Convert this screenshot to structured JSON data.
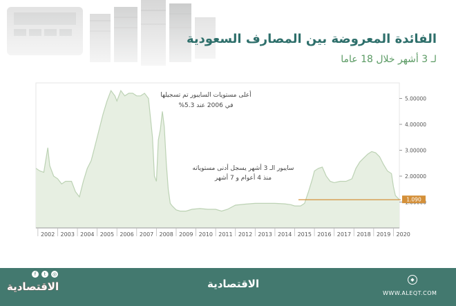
{
  "title": "الفائدة المعروضة بين المصارف السعودية",
  "subtitle": "لـ 3 أشهر خلال 18 عاما",
  "colors": {
    "accent": "#2e6f6b",
    "area_fill": "#e7efe2",
    "line": "#bcd2b4",
    "marker": "#d4903a",
    "footer": "#43796f"
  },
  "annotations": {
    "high_line1": "أعلى مستويات السايبور تم تسجيلها",
    "high_line2": "في 2006 عند 5.3%",
    "low_line1": "سايبور الـ 3 أشهر يسجل أدنى مستوياته",
    "low_line2": "منذ 4 أعوام و 7 أشهر"
  },
  "marker_label": "1.090",
  "footer": {
    "brand": "الاقتصادية",
    "url": "WWW.ALEQT.COM",
    "social_icons": [
      "facebook-icon",
      "twitter-icon",
      "instagram-icon"
    ]
  },
  "chart_data": {
    "type": "area",
    "title": "الفائدة المعروضة بين المصارف السعودية",
    "xlabel": "",
    "ylabel": "",
    "x_ticks": [
      "2002",
      "2003",
      "2004",
      "2005",
      "2006",
      "2007",
      "2008",
      "2009",
      "2010",
      "2011",
      "2012",
      "2013",
      "2014",
      "2015",
      "2016",
      "2017",
      "2018",
      "2019",
      "2020"
    ],
    "y_ticks": [
      "1.00000",
      "2.00000",
      "3.00000",
      "4.00000",
      "5.00000"
    ],
    "xlim": [
      2001.9,
      2020.3
    ],
    "ylim": [
      0,
      5.6
    ],
    "grid": false,
    "highlight_value": 1.09,
    "x": [
      2001.9,
      2002.1,
      2002.3,
      2002.5,
      2002.6,
      2002.8,
      2003.0,
      2003.2,
      2003.4,
      2003.7,
      2003.9,
      2004.1,
      2004.3,
      2004.5,
      2004.7,
      2004.9,
      2005.1,
      2005.3,
      2005.5,
      2005.7,
      2005.9,
      2006.0,
      2006.2,
      2006.4,
      2006.6,
      2006.8,
      2007.0,
      2007.2,
      2007.4,
      2007.6,
      2007.8,
      2007.9,
      2008.0,
      2008.1,
      2008.2,
      2008.3,
      2008.4,
      2008.5,
      2008.6,
      2008.7,
      2008.8,
      2009.0,
      2009.2,
      2009.5,
      2009.8,
      2010.2,
      2010.6,
      2011.0,
      2011.3,
      2011.6,
      2012.0,
      2012.5,
      2013.0,
      2013.5,
      2014.0,
      2014.5,
      2014.8,
      2015.0,
      2015.3,
      2015.5,
      2015.7,
      2015.9,
      2016.0,
      2016.2,
      2016.4,
      2016.6,
      2016.8,
      2017.0,
      2017.3,
      2017.6,
      2017.9,
      2018.1,
      2018.3,
      2018.5,
      2018.7,
      2018.9,
      2019.1,
      2019.3,
      2019.5,
      2019.7,
      2019.9,
      2020.0,
      2020.1,
      2020.3
    ],
    "values": [
      2.3,
      2.2,
      2.15,
      3.1,
      2.4,
      2.0,
      1.9,
      1.7,
      1.8,
      1.8,
      1.4,
      1.2,
      1.8,
      2.3,
      2.6,
      3.2,
      3.8,
      4.4,
      4.9,
      5.3,
      5.1,
      4.9,
      5.3,
      5.1,
      5.2,
      5.2,
      5.1,
      5.1,
      5.2,
      5.0,
      3.5,
      2.0,
      1.8,
      3.4,
      3.8,
      4.5,
      3.9,
      2.5,
      1.5,
      0.95,
      0.85,
      0.7,
      0.65,
      0.65,
      0.72,
      0.75,
      0.72,
      0.72,
      0.65,
      0.72,
      0.88,
      0.92,
      0.95,
      0.95,
      0.95,
      0.93,
      0.9,
      0.85,
      0.85,
      0.95,
      1.4,
      1.9,
      2.2,
      2.3,
      2.35,
      2.0,
      1.8,
      1.75,
      1.8,
      1.8,
      1.9,
      2.3,
      2.55,
      2.7,
      2.85,
      2.95,
      2.9,
      2.75,
      2.45,
      2.2,
      2.1,
      1.6,
      1.25,
      1.09
    ]
  }
}
